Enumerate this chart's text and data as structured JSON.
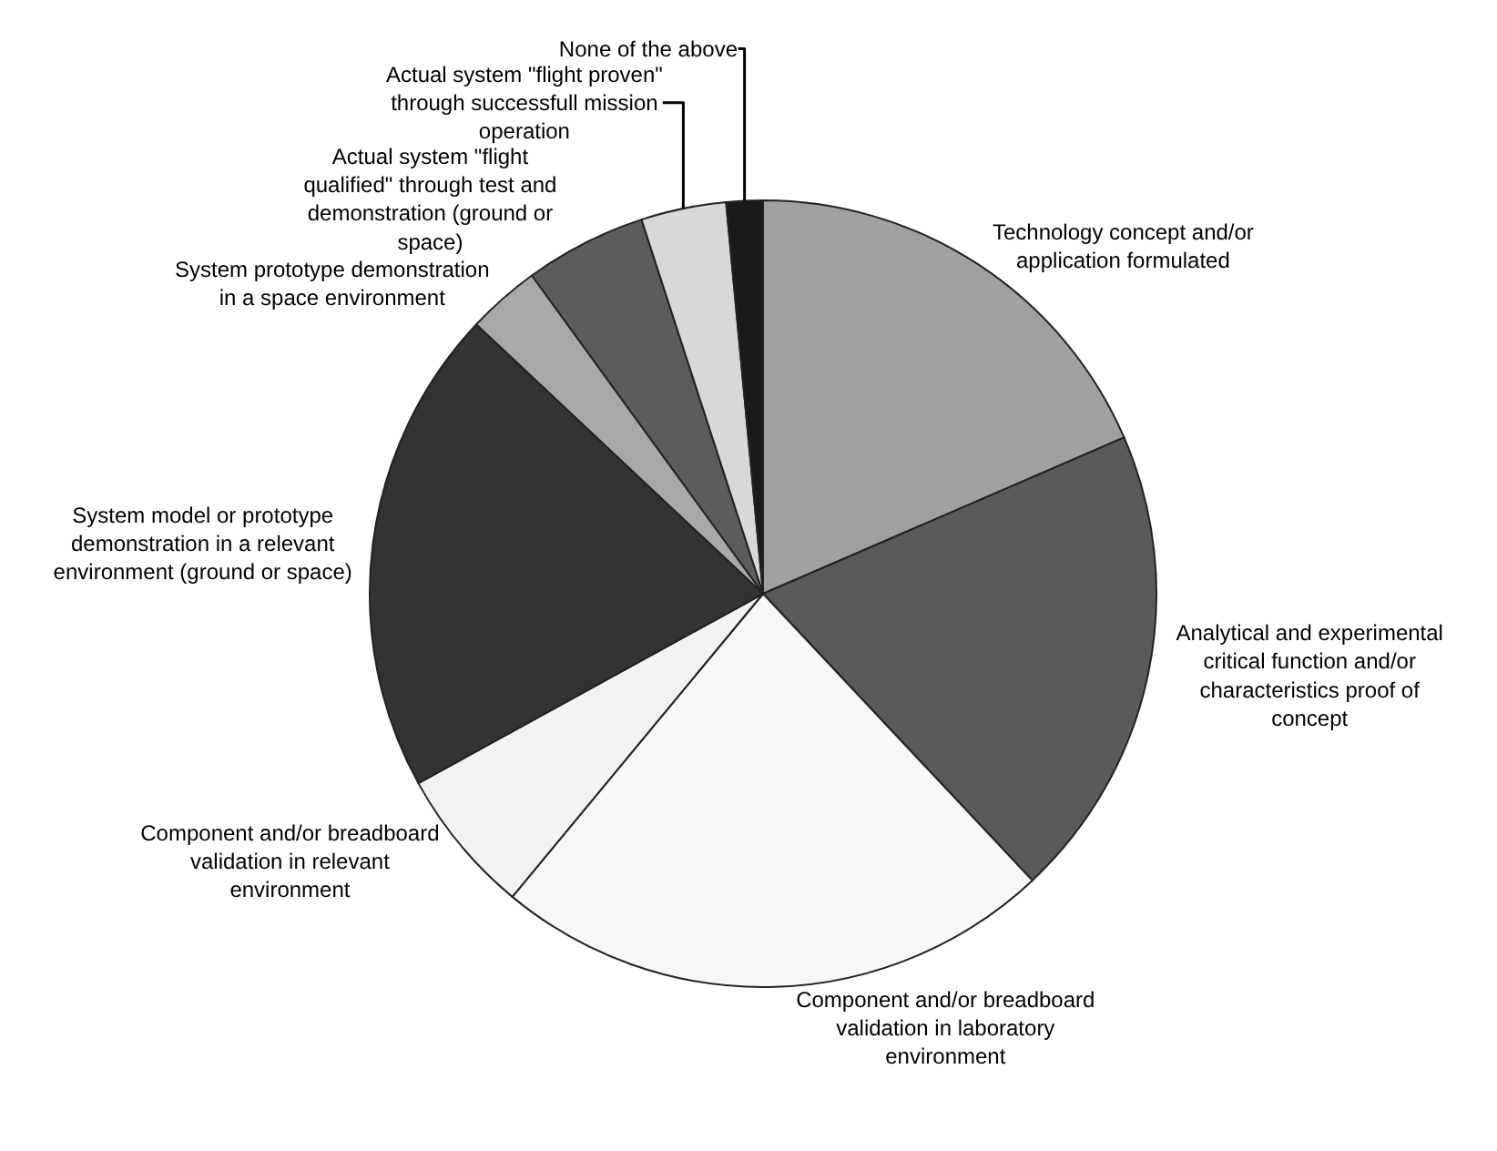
{
  "chart_data": {
    "type": "pie",
    "legend": false,
    "categories": [
      "Technology concept and/or application formulated",
      "Analytical and experimental critical function and/or characteristics proof of concept",
      "Component and/or breadboard validation in laboratory environment",
      "Component and/or breadboard validation in relevant environment",
      "System model or prototype demonstration in a relevant environment (ground or space)",
      "System prototype demonstration in a space environment",
      "Actual system \"flight qualified\" through test and demonstration (ground or space)",
      "Actual system \"flight proven\" through successfull mission operation",
      "None of the above"
    ],
    "values": [
      18.5,
      19.5,
      23,
      6,
      20,
      3,
      5,
      3.5,
      1.5
    ],
    "colors": [
      "#a0a0a0",
      "#5a5a5a",
      "#f7f7f7",
      "#f2f2f2",
      "#333333",
      "#a8a8a8",
      "#5c5c5c",
      "#d8d8d8",
      "#1a1a1a"
    ]
  }
}
